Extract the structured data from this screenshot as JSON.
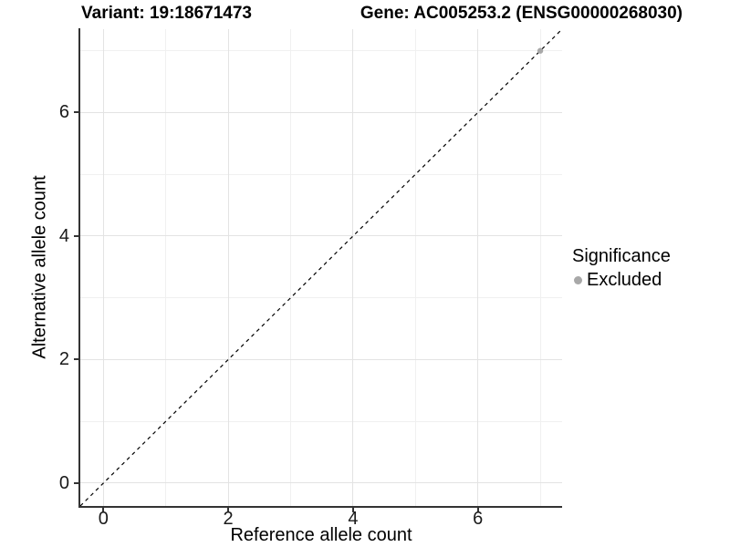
{
  "chart_data": {
    "type": "scatter",
    "title_left": "Variant: 19:18671473",
    "title_right": "Gene: AC005253.2 (ENSG00000268030)",
    "xlabel": "Reference allele count",
    "ylabel": "Alternative allele count",
    "xlim": [
      -0.37,
      7.35
    ],
    "ylim": [
      -0.37,
      7.35
    ],
    "x_major_ticks": [
      0,
      2,
      4,
      6
    ],
    "y_major_ticks": [
      0,
      2,
      4,
      6
    ],
    "x_minor_ticks": [
      1,
      3,
      5,
      7
    ],
    "y_minor_ticks": [
      1,
      3,
      5,
      7
    ],
    "grid": true,
    "points": [
      {
        "x": 7,
        "y": 7,
        "series": "Excluded"
      }
    ],
    "identity_line": {
      "slope": 1,
      "intercept": 0,
      "style": "dashed",
      "color": "#000000"
    },
    "legend": {
      "title": "Significance",
      "position": "right",
      "items": [
        {
          "label": "Excluded",
          "color": "#a8a8a8",
          "marker": "circle"
        }
      ]
    },
    "colors": {
      "excluded_point": "#a8a8a8",
      "grid_major": "#e3e3e3",
      "grid_minor": "#f0f0f0",
      "axis_line": "#333333",
      "text": "#000000"
    }
  }
}
